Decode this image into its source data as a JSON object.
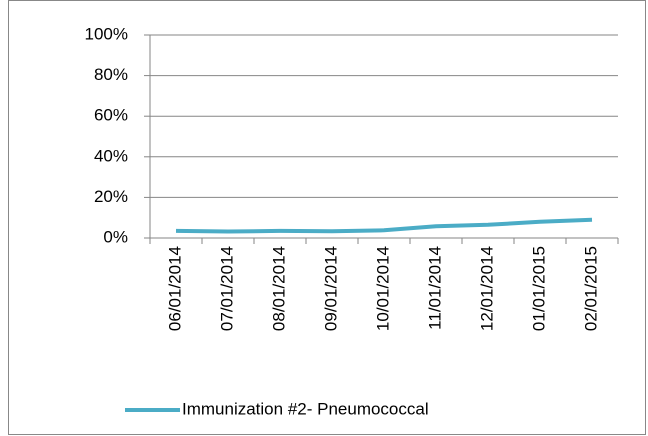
{
  "chart_data": {
    "type": "line",
    "categories": [
      "06/01/2014",
      "07/01/2014",
      "08/01/2014",
      "09/01/2014",
      "10/01/2014",
      "11/01/2014",
      "12/01/2014",
      "01/01/2015",
      "02/01/2015"
    ],
    "series": [
      {
        "name": "Immunization #2- Pneumococcal",
        "color": "#4bacc6",
        "values": [
          3.5,
          3.2,
          3.5,
          3.3,
          3.8,
          5.8,
          6.5,
          8,
          9
        ]
      }
    ],
    "ylim": [
      0,
      100
    ],
    "yticks": [
      {
        "value": 0,
        "label": "0%"
      },
      {
        "value": 20,
        "label": "20%"
      },
      {
        "value": 40,
        "label": "40%"
      },
      {
        "value": 60,
        "label": "60%"
      },
      {
        "value": 80,
        "label": "80%"
      },
      {
        "value": 100,
        "label": "100%"
      }
    ],
    "grid": true,
    "legend": "bottom"
  }
}
